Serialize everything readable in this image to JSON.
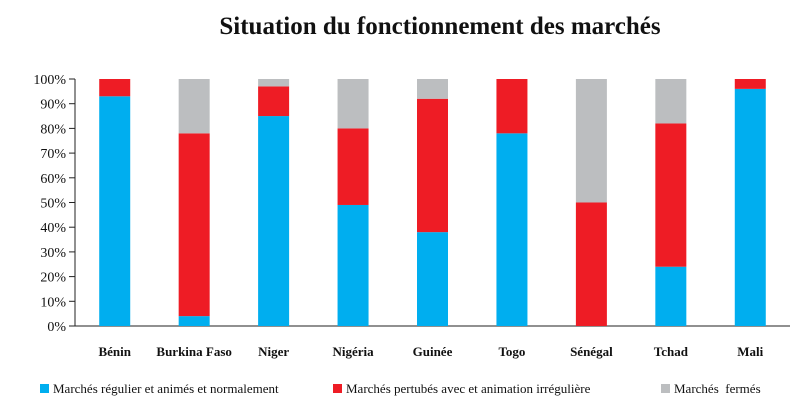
{
  "chart_data": {
    "type": "bar",
    "stacked": true,
    "title": "Situation du fonctionnement des marchés",
    "categories": [
      "Bénin",
      "Burkina Faso",
      "Niger",
      "Nigéria",
      "Guinée",
      "Togo",
      "Sénégal",
      "Tchad",
      "Mali"
    ],
    "series": [
      {
        "name": "Marchés régulier et animés et normalement",
        "color": "#00aeef",
        "values": [
          93,
          4,
          85,
          49,
          38,
          78,
          0,
          24,
          96
        ]
      },
      {
        "name": "Marchés pertubés avec et animation irrégulière",
        "color": "#ee1c25",
        "values": [
          7,
          74,
          12,
          31,
          54,
          22,
          50,
          58,
          4
        ]
      },
      {
        "name": "Marchés  fermés",
        "color": "#bcbec0",
        "values": [
          0,
          22,
          3,
          20,
          8,
          0,
          50,
          18,
          0
        ]
      }
    ],
    "yticks": [
      "0%",
      "10%",
      "20%",
      "30%",
      "40%",
      "50%",
      "60%",
      "70%",
      "80%",
      "90%",
      "100%"
    ],
    "ylim": [
      0,
      100
    ],
    "grid": false,
    "legend": "bottom"
  }
}
